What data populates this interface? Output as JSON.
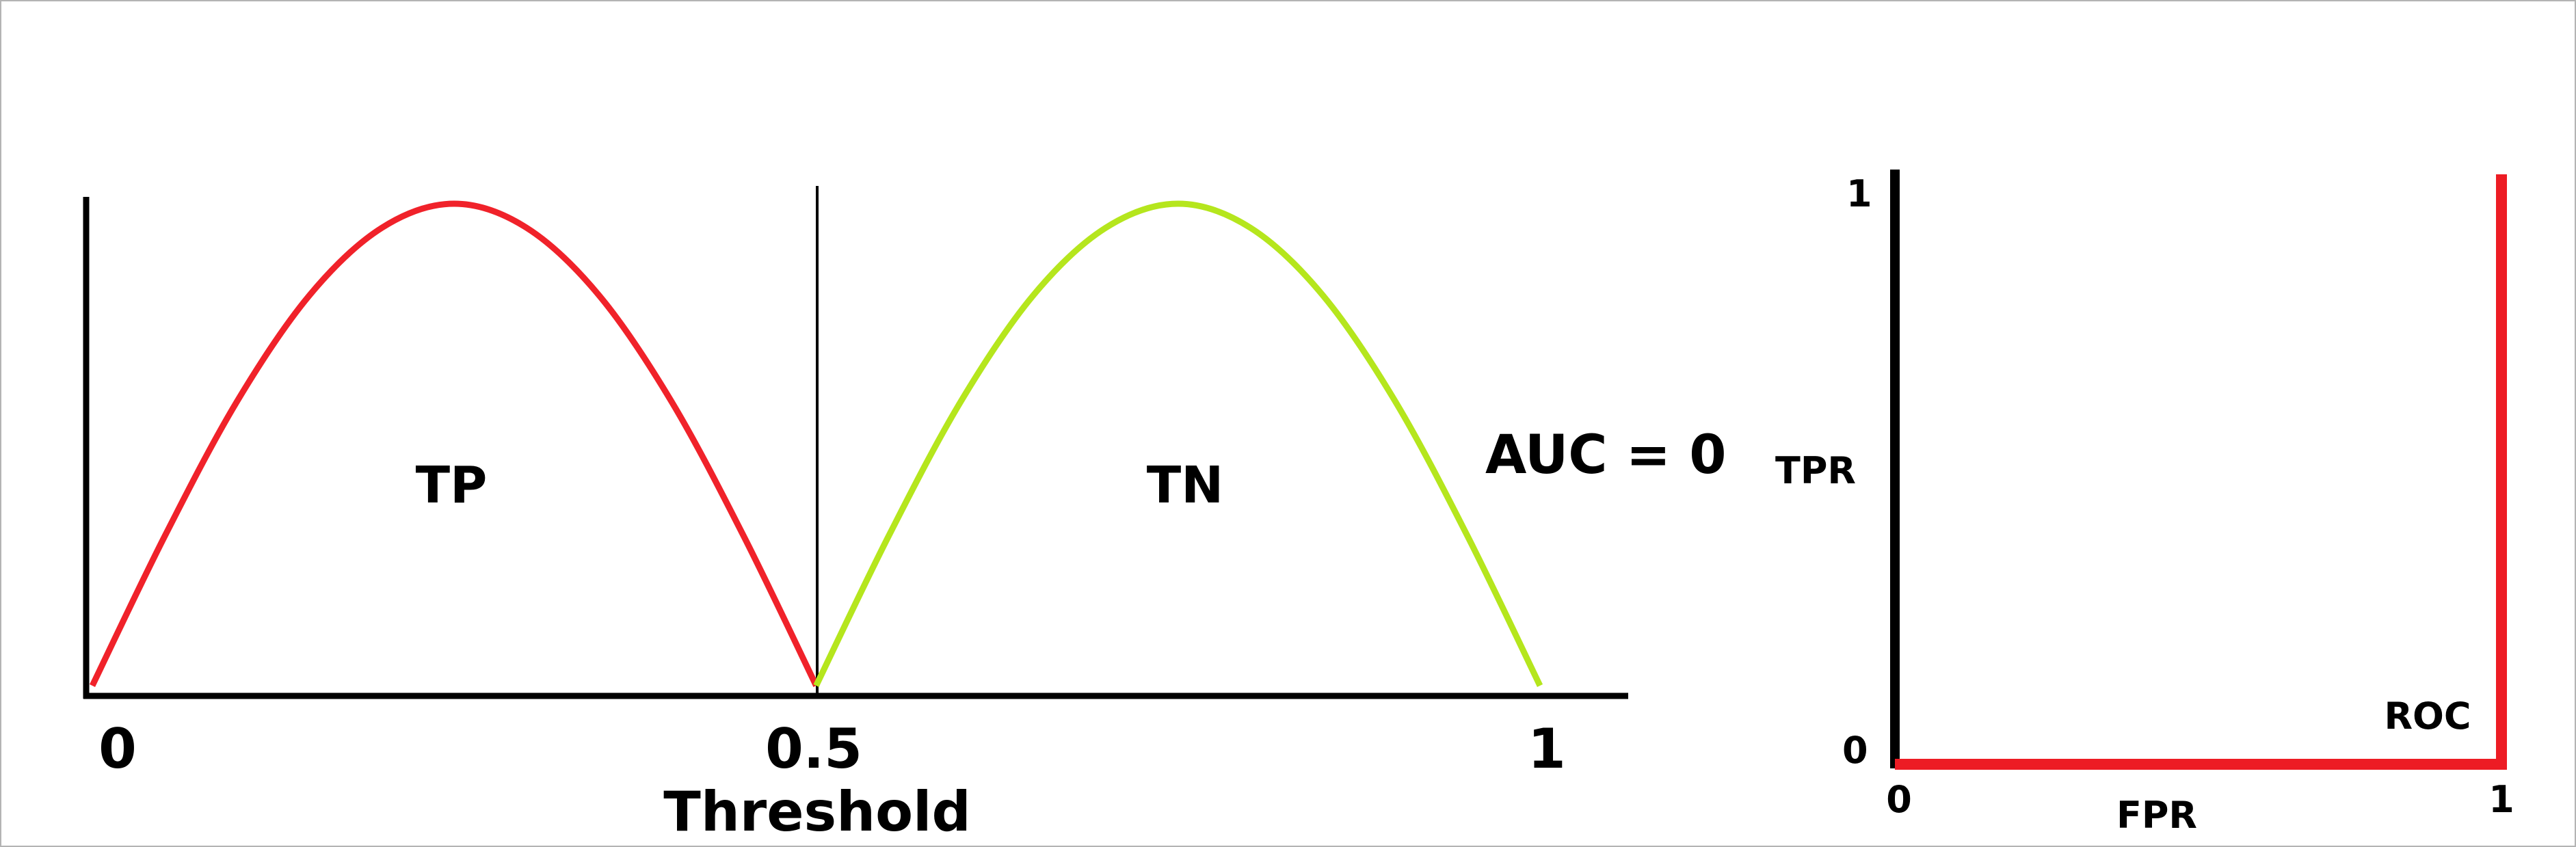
{
  "chart_data": [
    {
      "type": "line",
      "xlabel": "Threshold",
      "x_ticks": [
        "0",
        "0.5",
        "1"
      ],
      "xlim": [
        0,
        1
      ],
      "ylim": [
        0,
        1
      ],
      "series": [
        {
          "name": "TP",
          "color": "#f0222a",
          "x": [
            0,
            0.05,
            0.1,
            0.15,
            0.2,
            0.25,
            0.3,
            0.35,
            0.4,
            0.45,
            0.5
          ],
          "y": [
            0,
            0.31,
            0.59,
            0.81,
            0.95,
            1.0,
            0.95,
            0.81,
            0.59,
            0.31,
            0
          ]
        },
        {
          "name": "TN",
          "color": "#b5e61d",
          "x": [
            0.5,
            0.55,
            0.6,
            0.65,
            0.7,
            0.75,
            0.8,
            0.85,
            0.9,
            0.95,
            1.0
          ],
          "y": [
            0,
            0.31,
            0.59,
            0.81,
            0.95,
            1.0,
            0.95,
            0.81,
            0.59,
            0.31,
            0
          ]
        }
      ],
      "threshold": 0.5,
      "annotation": "AUC = 0",
      "grid": false
    },
    {
      "type": "line",
      "xlabel": "FPR",
      "ylabel": "TPR",
      "x_ticks": [
        "0",
        "1"
      ],
      "y_ticks": [
        "0",
        "1"
      ],
      "xlim": [
        0,
        1
      ],
      "ylim": [
        0,
        1
      ],
      "series": [
        {
          "name": "ROC",
          "color": "#ed1c24",
          "x": [
            0,
            1,
            1
          ],
          "y": [
            0,
            0,
            1
          ]
        }
      ],
      "grid": false
    }
  ]
}
